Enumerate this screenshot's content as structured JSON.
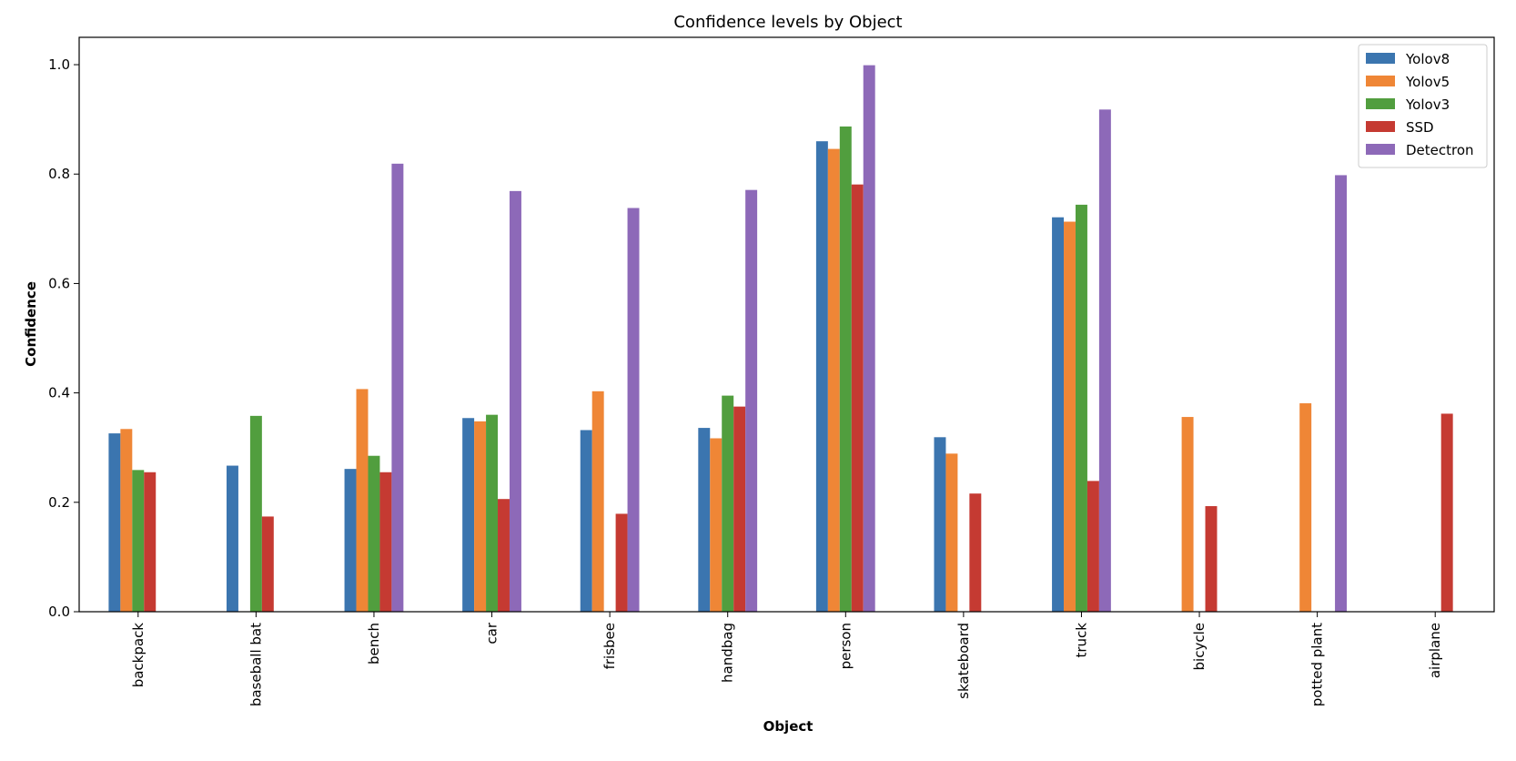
{
  "chart_data": {
    "type": "bar",
    "title": "Confidence levels by Object",
    "xlabel": "Object",
    "ylabel": "Confidence",
    "ylim": [
      0,
      1.05
    ],
    "yticks": [
      "0.0",
      "0.2",
      "0.4",
      "0.6",
      "0.8",
      "1.0"
    ],
    "grid": false,
    "legend_position": "top-right",
    "categories": [
      "backpack",
      "baseball bat",
      "bench",
      "car",
      "frisbee",
      "handbag",
      "person",
      "skateboard",
      "truck",
      "bicycle",
      "potted plant",
      "airplane"
    ],
    "series": [
      {
        "name": "Yolov8",
        "color": "#3b75af",
        "values": [
          0.326,
          0.267,
          0.261,
          0.354,
          0.332,
          0.336,
          0.86,
          0.319,
          0.721,
          null,
          null,
          null
        ]
      },
      {
        "name": "Yolov5",
        "color": "#ef8636",
        "values": [
          0.334,
          null,
          0.407,
          0.348,
          0.403,
          0.317,
          0.846,
          0.289,
          0.713,
          0.356,
          0.381,
          null
        ]
      },
      {
        "name": "Yolov3",
        "color": "#519e3e",
        "values": [
          0.259,
          0.358,
          0.285,
          0.36,
          null,
          0.395,
          0.887,
          null,
          0.744,
          null,
          null,
          null
        ]
      },
      {
        "name": "SSD",
        "color": "#c53a32",
        "values": [
          0.255,
          0.174,
          0.255,
          0.206,
          0.179,
          0.375,
          0.781,
          0.216,
          0.239,
          0.193,
          null,
          0.362
        ]
      },
      {
        "name": "Detectron",
        "color": "#8d69b8",
        "values": [
          null,
          null,
          0.819,
          0.769,
          0.738,
          0.771,
          0.999,
          null,
          0.918,
          null,
          0.798,
          null
        ]
      }
    ]
  }
}
